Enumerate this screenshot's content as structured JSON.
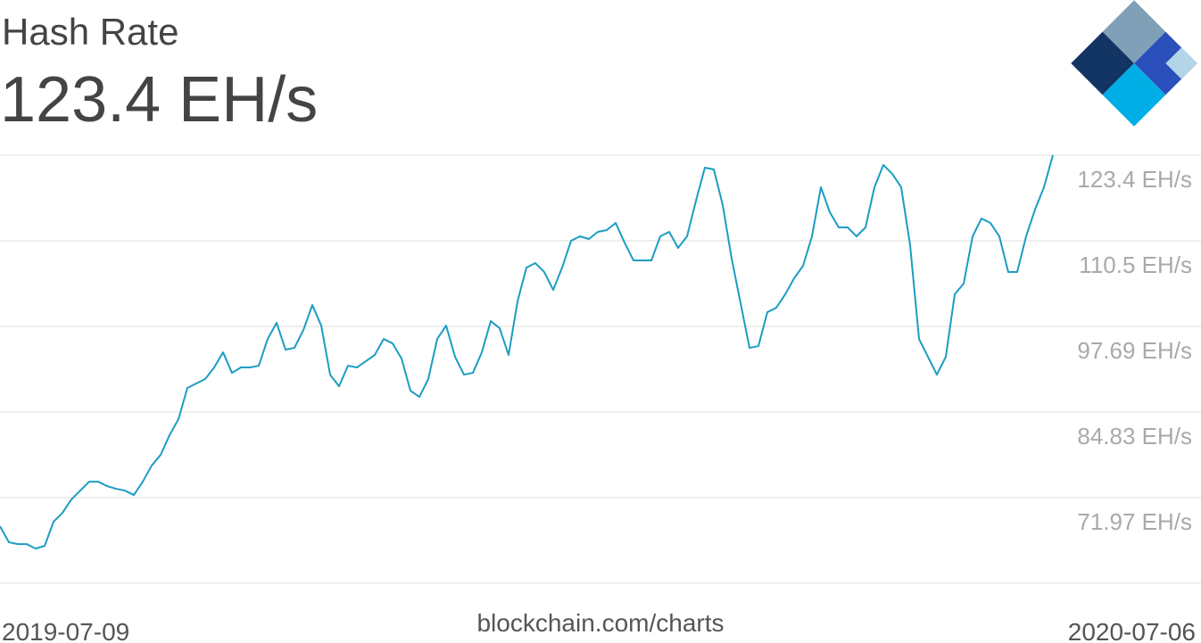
{
  "chart_data": {
    "type": "line",
    "title": "Hash Rate",
    "headline": "123.4 EH/s",
    "source": "blockchain.com/charts",
    "color": "#1b9dc2",
    "grid": true,
    "ylim": [
      59.11,
      123.4
    ],
    "yticks": [
      {
        "value": 123.4,
        "label": "123.4 EH/s"
      },
      {
        "value": 110.54,
        "label": "110.5 EH/s"
      },
      {
        "value": 97.69,
        "label": "97.69 EH/s"
      },
      {
        "value": 84.83,
        "label": "84.83 EH/s"
      },
      {
        "value": 71.97,
        "label": "71.97 EH/s"
      }
    ],
    "categories": [
      "2019-07-09",
      null,
      null,
      null,
      null,
      null,
      null,
      null,
      null,
      null,
      null,
      null,
      null,
      null,
      null,
      null,
      null,
      null,
      null,
      null,
      null,
      null,
      null,
      null,
      null,
      null,
      null,
      null,
      null,
      null,
      null,
      null,
      null,
      null,
      null,
      null,
      null,
      null,
      null,
      null,
      null,
      null,
      null,
      null,
      null,
      null,
      null,
      null,
      null,
      null,
      null,
      null,
      null,
      null,
      null,
      null,
      null,
      null,
      null,
      null,
      null,
      null,
      null,
      null,
      null,
      null,
      null,
      null,
      null,
      null,
      null,
      null,
      null,
      null,
      null,
      null,
      null,
      null,
      null,
      null,
      null,
      null,
      null,
      null,
      null,
      null,
      null,
      null,
      null,
      null,
      null,
      null,
      null,
      null,
      null,
      null,
      null,
      null,
      null,
      null,
      null,
      null,
      null,
      null,
      null,
      null,
      null,
      null,
      null,
      null,
      null,
      null,
      null,
      null,
      null,
      null,
      null,
      null,
      "2020-07-06"
    ],
    "values": [
      67.67,
      65.26,
      64.99,
      64.99,
      64.32,
      64.72,
      68.34,
      69.68,
      71.69,
      73.03,
      74.37,
      74.37,
      73.7,
      73.3,
      73.03,
      72.36,
      74.37,
      76.78,
      78.39,
      81.34,
      83.75,
      88.44,
      89.11,
      89.78,
      91.52,
      93.79,
      90.71,
      91.52,
      91.52,
      91.78,
      95.8,
      98.22,
      94.2,
      94.46,
      97.14,
      100.89,
      97.81,
      90.44,
      88.7,
      91.78,
      91.52,
      92.45,
      93.39,
      95.8,
      95.13,
      92.86,
      88.03,
      87.1,
      89.78,
      95.8,
      97.81,
      93.12,
      90.44,
      90.71,
      93.79,
      98.48,
      97.41,
      93.39,
      101.43,
      106.52,
      107.19,
      105.85,
      103.17,
      106.52,
      110.54,
      111.21,
      110.81,
      111.88,
      112.15,
      113.22,
      110.27,
      107.59,
      107.59,
      107.59,
      111.21,
      111.88,
      109.47,
      111.21,
      116.57,
      121.52,
      121.26,
      115.9,
      107.86,
      101.16,
      94.46,
      94.73,
      99.82,
      100.49,
      102.5,
      104.91,
      106.79,
      111.21,
      118.58,
      114.83,
      112.55,
      112.55,
      111.21,
      112.55,
      118.58,
      121.93,
      120.59,
      118.58,
      109.87,
      95.8,
      93.12,
      90.44,
      93.12,
      102.5,
      104.11,
      111.21,
      113.89,
      113.22,
      111.21,
      105.85,
      105.85,
      111.21,
      115.23,
      118.58,
      123.4
    ]
  }
}
